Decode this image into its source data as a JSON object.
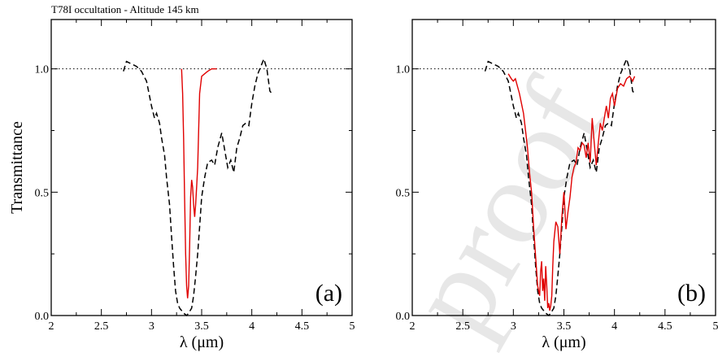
{
  "figure": {
    "title": "T78I occultation - Altitude 145 km",
    "watermark": "proof",
    "colors": {
      "observed": "#000000",
      "model": "#e00000",
      "reference": "#000000"
    }
  },
  "chart_data": [
    {
      "type": "line",
      "panel_label": "(a)",
      "xlabel": "λ (μm)",
      "ylabel": "Transmittance",
      "xlim": [
        2,
        5
      ],
      "ylim": [
        0,
        1.2
      ],
      "xticks": [
        2,
        2.5,
        3,
        3.5,
        4,
        4.5,
        5
      ],
      "xtick_labels": [
        "2",
        "2.5",
        "3",
        "3.5",
        "4",
        "4.5",
        "5"
      ],
      "yticks": [
        0.0,
        0.5,
        1.0
      ],
      "ytick_labels": [
        "0.0",
        "0.5",
        "1.0"
      ],
      "reference_line": 1.0,
      "grid": false,
      "series": [
        {
          "style": "dashed-black",
          "x": [
            2.72,
            2.75,
            2.8,
            2.85,
            2.9,
            2.95,
            3.0,
            3.03,
            3.05,
            3.08,
            3.1,
            3.13,
            3.15,
            3.18,
            3.2,
            3.22,
            3.24,
            3.26,
            3.28,
            3.3,
            3.32,
            3.35,
            3.37,
            3.4,
            3.42,
            3.44,
            3.46,
            3.48,
            3.5,
            3.53,
            3.56,
            3.6,
            3.63,
            3.66,
            3.7,
            3.73,
            3.76,
            3.79,
            3.82,
            3.85,
            3.88,
            3.91,
            3.94,
            3.97,
            4.0,
            4.03,
            4.06,
            4.09,
            4.12,
            4.15,
            4.18,
            4.2
          ],
          "y": [
            0.99,
            1.03,
            1.02,
            1.01,
            0.99,
            0.95,
            0.85,
            0.8,
            0.82,
            0.78,
            0.72,
            0.65,
            0.56,
            0.45,
            0.32,
            0.2,
            0.1,
            0.05,
            0.03,
            0.02,
            0.01,
            0.0,
            0.01,
            0.03,
            0.08,
            0.16,
            0.25,
            0.36,
            0.48,
            0.56,
            0.62,
            0.63,
            0.61,
            0.68,
            0.74,
            0.67,
            0.6,
            0.63,
            0.58,
            0.68,
            0.72,
            0.77,
            0.78,
            0.77,
            0.86,
            0.93,
            0.98,
            1.01,
            1.04,
            1.0,
            0.91,
            0.9
          ]
        },
        {
          "style": "solid-red",
          "x": [
            3.3,
            3.31,
            3.32,
            3.33,
            3.34,
            3.35,
            3.36,
            3.37,
            3.38,
            3.39,
            3.4,
            3.41,
            3.42,
            3.43,
            3.44,
            3.45,
            3.46,
            3.47,
            3.48,
            3.5,
            3.53,
            3.56,
            3.6,
            3.65
          ],
          "y": [
            1.0,
            0.9,
            0.72,
            0.48,
            0.25,
            0.12,
            0.07,
            0.12,
            0.28,
            0.48,
            0.55,
            0.52,
            0.45,
            0.4,
            0.45,
            0.52,
            0.6,
            0.75,
            0.9,
            0.97,
            0.98,
            0.99,
            1.0,
            1.0
          ]
        }
      ]
    },
    {
      "type": "line",
      "panel_label": "(b)",
      "xlabel": "λ (μm)",
      "ylabel": "",
      "xlim": [
        2,
        5
      ],
      "ylim": [
        0,
        1.2
      ],
      "xticks": [
        2,
        2.5,
        3,
        3.5,
        4,
        4.5,
        5
      ],
      "xtick_labels": [
        "2",
        "2.5",
        "3",
        "3.5",
        "4",
        "4.5",
        "5"
      ],
      "yticks": [
        0.0,
        0.5,
        1.0
      ],
      "ytick_labels": [
        "0.0",
        "0.5",
        "1.0"
      ],
      "reference_line": 1.0,
      "grid": false,
      "series": [
        {
          "style": "dashed-black",
          "x": [
            2.72,
            2.75,
            2.8,
            2.85,
            2.9,
            2.95,
            3.0,
            3.03,
            3.05,
            3.08,
            3.1,
            3.13,
            3.15,
            3.18,
            3.2,
            3.22,
            3.24,
            3.26,
            3.28,
            3.3,
            3.32,
            3.35,
            3.37,
            3.4,
            3.42,
            3.44,
            3.46,
            3.48,
            3.5,
            3.53,
            3.56,
            3.6,
            3.63,
            3.66,
            3.7,
            3.73,
            3.76,
            3.79,
            3.82,
            3.85,
            3.88,
            3.91,
            3.94,
            3.97,
            4.0,
            4.03,
            4.06,
            4.09,
            4.12,
            4.15,
            4.18,
            4.2
          ],
          "y": [
            0.99,
            1.03,
            1.02,
            1.01,
            0.99,
            0.95,
            0.85,
            0.8,
            0.82,
            0.78,
            0.72,
            0.65,
            0.56,
            0.45,
            0.32,
            0.2,
            0.1,
            0.05,
            0.03,
            0.02,
            0.01,
            0.0,
            0.01,
            0.03,
            0.08,
            0.16,
            0.25,
            0.36,
            0.48,
            0.56,
            0.62,
            0.63,
            0.61,
            0.68,
            0.74,
            0.67,
            0.6,
            0.63,
            0.58,
            0.68,
            0.72,
            0.77,
            0.78,
            0.77,
            0.86,
            0.93,
            0.98,
            1.01,
            1.04,
            1.0,
            0.91,
            0.9
          ]
        },
        {
          "style": "solid-red",
          "x": [
            2.95,
            2.98,
            3.0,
            3.02,
            3.04,
            3.06,
            3.08,
            3.1,
            3.12,
            3.14,
            3.16,
            3.18,
            3.2,
            3.22,
            3.24,
            3.26,
            3.27,
            3.28,
            3.29,
            3.3,
            3.31,
            3.32,
            3.33,
            3.34,
            3.35,
            3.36,
            3.37,
            3.38,
            3.39,
            3.4,
            3.42,
            3.44,
            3.46,
            3.48,
            3.5,
            3.52,
            3.54,
            3.56,
            3.58,
            3.6,
            3.62,
            3.64,
            3.66,
            3.68,
            3.7,
            3.72,
            3.74,
            3.76,
            3.78,
            3.8,
            3.82,
            3.84,
            3.86,
            3.88,
            3.9,
            3.92,
            3.94,
            3.96,
            3.98,
            4.0,
            4.03,
            4.06,
            4.09,
            4.12,
            4.15,
            4.18,
            4.2
          ],
          "y": [
            0.98,
            0.96,
            0.95,
            0.96,
            0.93,
            0.9,
            0.86,
            0.82,
            0.75,
            0.68,
            0.58,
            0.5,
            0.36,
            0.24,
            0.12,
            0.08,
            0.18,
            0.22,
            0.1,
            0.15,
            0.06,
            0.2,
            0.12,
            0.03,
            0.05,
            0.02,
            0.04,
            0.08,
            0.2,
            0.3,
            0.38,
            0.36,
            0.25,
            0.4,
            0.5,
            0.35,
            0.42,
            0.48,
            0.56,
            0.6,
            0.62,
            0.68,
            0.67,
            0.7,
            0.69,
            0.64,
            0.7,
            0.62,
            0.8,
            0.7,
            0.61,
            0.7,
            0.78,
            0.75,
            0.8,
            0.85,
            0.8,
            0.88,
            0.9,
            0.85,
            0.92,
            0.94,
            0.93,
            0.96,
            0.97,
            0.95,
            0.97
          ]
        }
      ]
    }
  ]
}
